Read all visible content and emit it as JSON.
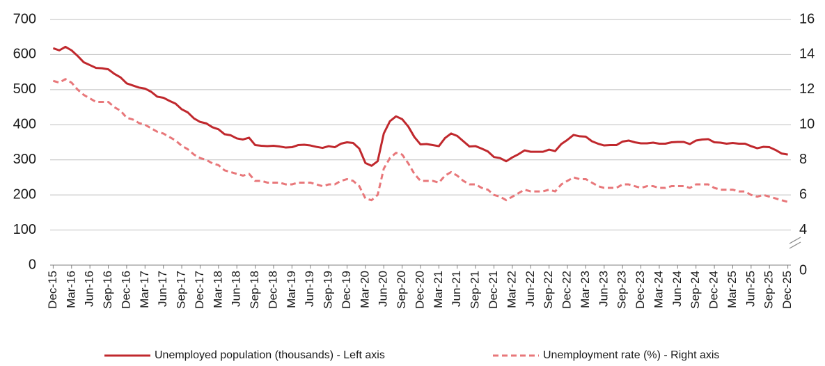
{
  "chart_data": {
    "type": "line",
    "categories": [
      "Dec-15",
      null,
      null,
      "Mar-16",
      null,
      null,
      "Jun-16",
      null,
      null,
      "Sep-16",
      null,
      null,
      "Dec-16",
      null,
      null,
      "Mar-17",
      null,
      null,
      "Jun-17",
      null,
      null,
      "Sep-17",
      null,
      null,
      "Dec-17",
      null,
      null,
      "Mar-18",
      null,
      null,
      "Jun-18",
      null,
      null,
      "Sep-18",
      null,
      null,
      "Dec-18",
      null,
      null,
      "Mar-19",
      null,
      null,
      "Jun-19",
      null,
      null,
      "Sep-19",
      null,
      null,
      "Dec-19",
      null,
      null,
      "Mar-20",
      null,
      null,
      "Jun-20",
      null,
      null,
      "Sep-20",
      null,
      null,
      "Dec-20",
      null,
      null,
      "Mar-21",
      null,
      null,
      "Jun-21",
      null,
      null,
      "Sep-21",
      null,
      null,
      "Dec-21",
      null,
      null,
      "Mar-22",
      null,
      null,
      "Jun-22",
      null,
      null,
      "Sep-22",
      null,
      null,
      "Dec-22",
      null,
      null,
      "Mar-23",
      null,
      null,
      "Jun-23",
      null,
      null,
      "Sep-23",
      null,
      null,
      "Dec-23",
      null,
      null,
      "Mar-24",
      null,
      null,
      "Jun-24",
      null,
      null,
      "Sep-24",
      null,
      null,
      "Dec-24",
      null,
      null,
      "Mar-25",
      null,
      null,
      "Jun-25",
      null,
      null,
      "Sep-25",
      null,
      null,
      "Dec-25"
    ],
    "series": [
      {
        "name": "Unemployed population (thousands) - Left axis",
        "color": "#c0282d",
        "dashed": false,
        "axis": "y",
        "values": [
          618,
          612,
          622,
          612,
          596,
          578,
          570,
          562,
          561,
          558,
          545,
          535,
          518,
          512,
          506,
          503,
          494,
          480,
          477,
          468,
          460,
          444,
          435,
          418,
          408,
          404,
          393,
          387,
          373,
          370,
          361,
          358,
          363,
          342,
          340,
          339,
          340,
          338,
          335,
          336,
          342,
          343,
          341,
          337,
          334,
          339,
          336,
          346,
          350,
          348,
          332,
          291,
          283,
          296,
          375,
          410,
          424,
          416,
          395,
          365,
          344,
          345,
          342,
          339,
          362,
          375,
          368,
          353,
          338,
          339,
          332,
          324,
          308,
          305,
          296,
          307,
          316,
          327,
          323,
          323,
          323,
          329,
          325,
          345,
          357,
          371,
          367,
          366,
          353,
          346,
          341,
          342,
          342,
          352,
          355,
          350,
          347,
          347,
          349,
          346,
          346,
          350,
          351,
          351,
          345,
          355,
          358,
          359,
          350,
          349,
          346,
          348,
          346,
          346,
          339,
          333,
          337,
          336,
          328,
          318,
          315
        ]
      },
      {
        "name": "Unemployment rate (%) - Right axis",
        "color": "#e8777a",
        "dashed": true,
        "axis": "y2",
        "values": [
          12.5,
          12.4,
          12.6,
          12.4,
          12.0,
          11.7,
          11.5,
          11.3,
          11.3,
          11.3,
          11.0,
          10.8,
          10.4,
          10.3,
          10.1,
          10.0,
          9.8,
          9.6,
          9.5,
          9.3,
          9.1,
          8.8,
          8.6,
          8.3,
          8.1,
          8.0,
          7.8,
          7.7,
          7.4,
          7.3,
          7.2,
          7.1,
          7.2,
          6.8,
          6.8,
          6.7,
          6.7,
          6.7,
          6.6,
          6.6,
          6.7,
          6.7,
          6.7,
          6.6,
          6.5,
          6.6,
          6.6,
          6.8,
          6.9,
          6.8,
          6.5,
          5.8,
          5.7,
          6.0,
          7.5,
          8.1,
          8.4,
          8.3,
          7.8,
          7.2,
          6.8,
          6.8,
          6.8,
          6.7,
          7.1,
          7.3,
          7.1,
          6.8,
          6.6,
          6.6,
          6.4,
          6.3,
          6.0,
          5.9,
          5.7,
          5.9,
          6.1,
          6.3,
          6.2,
          6.2,
          6.2,
          6.3,
          6.2,
          6.6,
          6.8,
          7.0,
          6.9,
          6.9,
          6.7,
          6.5,
          6.4,
          6.4,
          6.4,
          6.6,
          6.6,
          6.5,
          6.4,
          6.5,
          6.5,
          6.4,
          6.4,
          6.5,
          6.5,
          6.5,
          6.4,
          6.6,
          6.6,
          6.6,
          6.4,
          6.3,
          6.3,
          6.3,
          6.2,
          6.2,
          6.0,
          5.9,
          6.0,
          5.9,
          5.8,
          5.7,
          5.6
        ]
      }
    ],
    "ylim": [
      0,
      700
    ],
    "yticks": [
      0,
      100,
      200,
      300,
      400,
      500,
      600,
      700
    ],
    "y2lim": [
      2,
      16
    ],
    "y2ticks": [
      4,
      6,
      8,
      10,
      12,
      14,
      16
    ],
    "y2_axis_break": {
      "label": "0"
    },
    "grid": true,
    "legend": "bottom"
  }
}
